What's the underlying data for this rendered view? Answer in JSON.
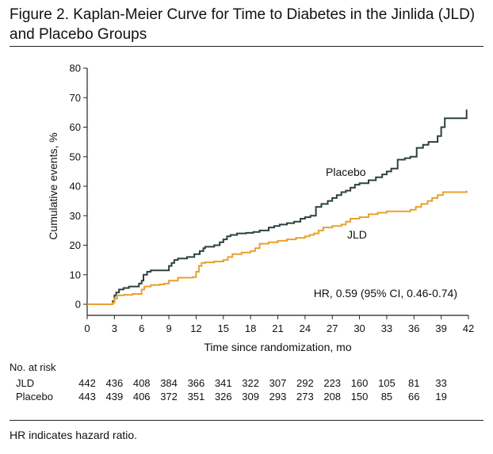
{
  "figure": {
    "title": "Figure 2. Kaplan-Meier Curve for Time to Diabetes in the Jinlida (JLD) and Placebo Groups",
    "footnote": "HR indicates hazard ratio."
  },
  "chart_data": {
    "type": "line",
    "xlabel": "Time since randomization, mo",
    "ylabel": "Cumulative events, %",
    "xlim": [
      0,
      42
    ],
    "ylim": [
      0,
      80
    ],
    "xticks": [
      0,
      3,
      6,
      9,
      12,
      15,
      18,
      21,
      24,
      27,
      30,
      33,
      36,
      39,
      42
    ],
    "yticks": [
      0,
      10,
      20,
      30,
      40,
      50,
      60,
      70,
      80
    ],
    "annotation": "HR, 0.59 (95% CI, 0.46-0.74)",
    "colors": {
      "Placebo": "#2e4040",
      "JLD": "#e8a02c"
    },
    "series": [
      {
        "name": "Placebo",
        "label": "Placebo",
        "x": [
          0,
          2.8,
          3.0,
          3.2,
          3.5,
          4.0,
          4.6,
          5.0,
          5.7,
          6.0,
          6.2,
          6.6,
          7.0,
          8.0,
          9.0,
          9.3,
          9.6,
          10.0,
          11.0,
          11.8,
          12.4,
          12.8,
          13.0,
          14.0,
          14.6,
          15.0,
          15.4,
          15.8,
          16.5,
          17.5,
          18.3,
          19.0,
          20.0,
          20.6,
          21.2,
          22.0,
          22.8,
          23.5,
          24.0,
          24.6,
          25.2,
          25.8,
          26.5,
          27.0,
          27.5,
          28.0,
          28.5,
          29.0,
          29.5,
          30.0,
          31.0,
          31.8,
          32.5,
          33.0,
          33.5,
          34.2,
          35.0,
          35.6,
          36.3,
          37.0,
          37.6,
          38.3,
          38.6,
          39.0,
          39.4,
          41.8
        ],
        "y": [
          0,
          1,
          3,
          4,
          5,
          5.5,
          6,
          6,
          7,
          8,
          10,
          11,
          11.5,
          11.5,
          13,
          14,
          15,
          15.5,
          16,
          17,
          18,
          19,
          19.5,
          20,
          21,
          22,
          23,
          23.5,
          24,
          24.2,
          24.5,
          25,
          26,
          26.5,
          27,
          27.5,
          28,
          29,
          29.5,
          30,
          33,
          34,
          35,
          36,
          37,
          38,
          38.5,
          39.5,
          40.5,
          41,
          42,
          43,
          44,
          45,
          46,
          49,
          49.5,
          50,
          53,
          54,
          55,
          55,
          57,
          60,
          63,
          66
        ]
      },
      {
        "name": "JLD",
        "label": "JLD",
        "x": [
          0,
          2.8,
          3.0,
          3.3,
          4.0,
          5.0,
          6.0,
          6.3,
          7.0,
          8.0,
          8.5,
          9.0,
          10.0,
          11.0,
          11.6,
          12.0,
          12.3,
          12.6,
          13.0,
          14.0,
          15.0,
          15.5,
          16.0,
          17.0,
          18.0,
          18.5,
          19.0,
          20.0,
          21.0,
          22.0,
          23.0,
          24.0,
          24.5,
          25.0,
          25.5,
          26.0,
          27.0,
          28.0,
          28.5,
          29.0,
          30.0,
          31.0,
          32.0,
          33.0,
          34.0,
          35.0,
          35.6,
          36.2,
          36.8,
          37.5,
          38.0,
          38.6,
          39.2,
          41.8
        ],
        "y": [
          0,
          0.5,
          2,
          3,
          3.2,
          3.5,
          5,
          6,
          6.5,
          6.7,
          7,
          8,
          9,
          9,
          9.2,
          11,
          13,
          14,
          14.2,
          14.5,
          15,
          16,
          17,
          17.5,
          18,
          19,
          20.5,
          21,
          21.5,
          22,
          22.5,
          23,
          23.5,
          24,
          25,
          26,
          26.5,
          27,
          28,
          29,
          29.5,
          30.5,
          31,
          31.5,
          31.5,
          31.5,
          32,
          33,
          34,
          35,
          36,
          37,
          38,
          38.5
        ]
      }
    ]
  },
  "risk_table": {
    "header": "No. at risk",
    "times": [
      0,
      3,
      6,
      9,
      12,
      15,
      18,
      21,
      24,
      27,
      30,
      33,
      36,
      39
    ],
    "rows": [
      {
        "label": "JLD",
        "values": [
          "442",
          "436",
          "408",
          "384",
          "366",
          "341",
          "322",
          "307",
          "292",
          "223",
          "160",
          "105",
          "81",
          "33"
        ]
      },
      {
        "label": "Placebo",
        "values": [
          "443",
          "439",
          "406",
          "372",
          "351",
          "326",
          "309",
          "293",
          "273",
          "208",
          "150",
          "85",
          "66",
          "19"
        ]
      }
    ]
  }
}
